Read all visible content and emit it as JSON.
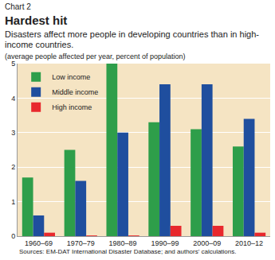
{
  "chart_data": {
    "type": "bar",
    "title": "Hardest hit",
    "subtitle": "Disasters affect more people in developing countries than in high-income countries.",
    "y_label": "(average people affected per year, percent of population)",
    "annotations": [
      "Chart 2",
      "Sources: EM-DAT International Disaster Database; and authors' calculations."
    ],
    "categories": [
      "1960–69",
      "1970–79",
      "1980–89",
      "1990–99",
      "2000–09",
      "2010–12"
    ],
    "series": [
      {
        "name": "Low income",
        "color": "#2e9e4a",
        "values": [
          1.7,
          2.5,
          5.0,
          3.3,
          3.1,
          2.6
        ]
      },
      {
        "name": "Middle income",
        "color": "#1f4e9e",
        "values": [
          0.6,
          1.6,
          3.0,
          4.4,
          4.4,
          3.4
        ]
      },
      {
        "name": "High income",
        "color": "#e8282d",
        "values": [
          0.1,
          0.02,
          0.02,
          0.3,
          0.3,
          0.1
        ]
      }
    ],
    "ylim": [
      0,
      5
    ],
    "yticks": [
      0,
      1,
      2,
      3,
      4,
      5
    ],
    "grid": true,
    "legend": "top-left"
  }
}
